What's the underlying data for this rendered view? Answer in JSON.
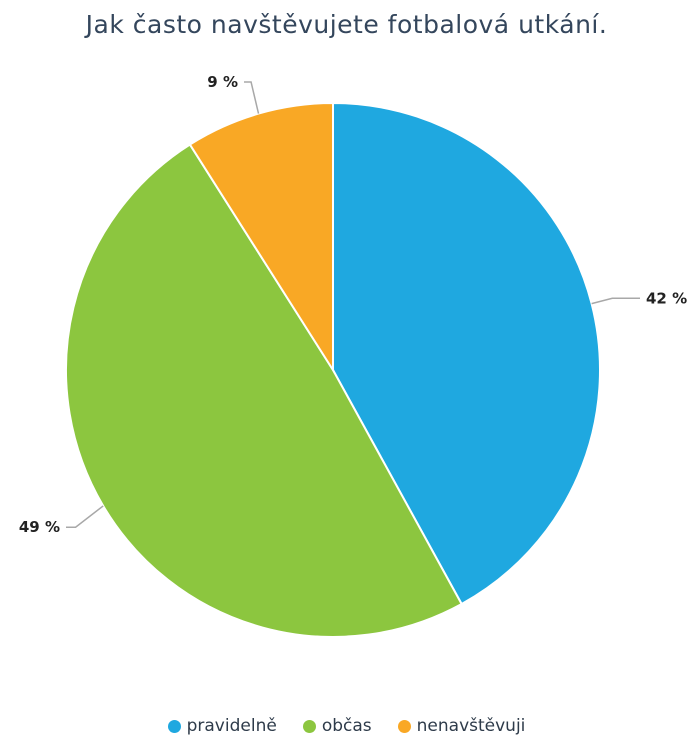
{
  "chart_data": {
    "type": "pie",
    "title": "Jak často navštěvujete fotbalová utkání.",
    "slices": [
      {
        "label": "pravidelně",
        "value": 42,
        "display": "42 %",
        "color": "#1fa8e0"
      },
      {
        "label": "občas",
        "value": 49,
        "display": "49 %",
        "color": "#8cc63f"
      },
      {
        "label": "nenavštěvuji",
        "value": 9,
        "display": "9 %",
        "color": "#f9a825"
      }
    ],
    "start": "12 o'clock, clockwise",
    "legend_position": "bottom"
  }
}
